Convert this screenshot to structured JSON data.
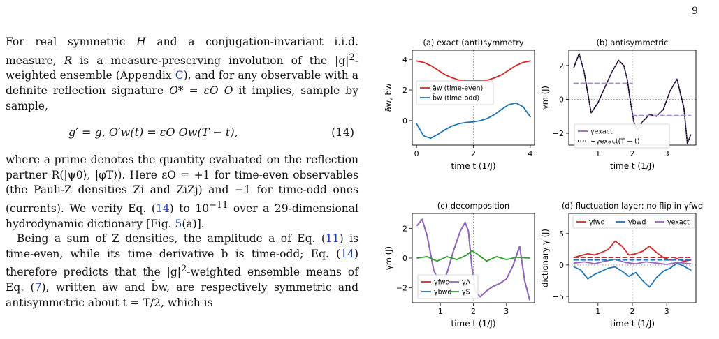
{
  "page_number": "9",
  "text": {
    "p1_a": "For real symmetric ",
    "p1_b": " and a conjugation-invariant i.i.d. measure, ",
    "p1_c": " is a measure-preserving involution of the |g|",
    "p1_d": "-weighted ensemble (Appendix ",
    "p1_appendix": "C",
    "p1_e": "), and for any observable with a definite reflection signature ",
    "p1_f": " it implies, sample by sample,",
    "equation": "g′ = g,        O′w(t) = εO Ow(T − t),",
    "equation_number": "(14)",
    "p2_a": "where a prime denotes the quantity evaluated on the reflection partner R(|ψ0⟩, |φT⟩). Here εO = +1 for time-even observables (the Pauli-Z densities Zi and ZiZj) and −1 for time-odd ones (currents). We verify Eq. (",
    "p2_eqref": "14",
    "p2_b": ") to 10",
    "p2_exp": "−11",
    "p2_c": " over a 29-dimensional hydrodynamic dictionary [Fig. ",
    "p2_figref": "5",
    "p2_d": "(a)].",
    "p3_a": "Being a sum of Z densities, the amplitude a of Eq. (",
    "p3_eqref1": "11",
    "p3_b": ") is time-even, while its time derivative b is time-odd; Eq. (",
    "p3_eqref2": "14",
    "p3_c": ") therefore predicts that the |g|",
    "p3_d": "-weighted ensemble means of Eq. (",
    "p3_eqref3": "7",
    "p3_e": "), written āw and b̄w, are respectively symmetric and antisymmetric about t = T/2, which is",
    "sym_H": "H",
    "sym_R": "R",
    "sym_O": "O* = εO O",
    "sup2": "2"
  },
  "colors": {
    "red": "#d62728",
    "blue": "#1f77b4",
    "purple": "#9467bd",
    "green": "#2ca02c",
    "dashed_purple": "#a98bd6"
  },
  "chart_data": [
    {
      "id": "a",
      "type": "line",
      "title": "(a) exact (anti)symmetry",
      "xlabel": "time t (1/J)",
      "ylabel": "āw, b̄w",
      "xlim": [
        -0.15,
        4.15
      ],
      "ylim": [
        -1.6,
        4.6
      ],
      "xticks": [
        0,
        2,
        4
      ],
      "yticks": [
        0,
        2,
        4
      ],
      "vline": 2,
      "legend": "center-left",
      "series": [
        {
          "name": "āw (time-even)",
          "color": "red",
          "x": [
            0,
            0.25,
            0.5,
            0.75,
            1.0,
            1.25,
            1.5,
            1.75,
            2.0,
            2.25,
            2.5,
            2.75,
            3.0,
            3.25,
            3.5,
            3.75,
            4.0
          ],
          "y": [
            3.9,
            3.8,
            3.6,
            3.3,
            3.0,
            2.8,
            2.65,
            2.6,
            2.6,
            2.6,
            2.65,
            2.8,
            3.0,
            3.3,
            3.6,
            3.8,
            3.9
          ]
        },
        {
          "name": "b̄w (time-odd)",
          "color": "blue",
          "x": [
            0,
            0.25,
            0.5,
            0.75,
            1.0,
            1.25,
            1.5,
            1.75,
            2.0,
            2.25,
            2.5,
            2.75,
            3.0,
            3.25,
            3.5,
            3.75,
            4.0
          ],
          "y": [
            -0.2,
            -1.0,
            -1.15,
            -0.9,
            -0.6,
            -0.35,
            -0.2,
            -0.12,
            -0.08,
            0.0,
            0.15,
            0.4,
            0.75,
            1.05,
            1.15,
            0.9,
            0.25
          ]
        }
      ]
    },
    {
      "id": "b",
      "type": "line",
      "title": "(b) antisymmetric",
      "xlabel": "time t (1/J)",
      "ylabel": "γm (J)",
      "xlim": [
        0.15,
        3.85
      ],
      "ylim": [
        -2.7,
        2.9
      ],
      "xticks": [
        1,
        2,
        3
      ],
      "yticks": [
        -2,
        0,
        2
      ],
      "vline": 2,
      "hline_dotted": 0,
      "legend": "lower-right",
      "series": [
        {
          "name": "γexact",
          "color": "purple",
          "style": "solid",
          "x": [
            0.3,
            0.45,
            0.6,
            0.8,
            1.0,
            1.2,
            1.4,
            1.6,
            1.75,
            1.85,
            1.95,
            2.05,
            2.15,
            2.3,
            2.5,
            2.7,
            2.9,
            3.1,
            3.3,
            3.5,
            3.6,
            3.7
          ],
          "y": [
            1.9,
            2.7,
            1.6,
            -0.8,
            -0.2,
            0.7,
            1.6,
            2.3,
            2.0,
            1.2,
            -0.2,
            -1.4,
            -1.8,
            -1.3,
            -0.9,
            -1.0,
            -0.6,
            0.5,
            1.2,
            -0.5,
            -2.6,
            -2.1
          ]
        },
        {
          "name": "−γexact(T − t)",
          "color": "black",
          "style": "dotted",
          "x": [
            0.3,
            0.45,
            0.6,
            0.8,
            1.0,
            1.2,
            1.4,
            1.6,
            1.75,
            1.85,
            1.95,
            2.05,
            2.15,
            2.3,
            2.5,
            2.7,
            2.9,
            3.1,
            3.3,
            3.5,
            3.6,
            3.7
          ],
          "y": [
            1.9,
            2.7,
            1.6,
            -0.8,
            -0.2,
            0.7,
            1.6,
            2.3,
            2.0,
            1.2,
            -0.2,
            -1.4,
            -1.8,
            -1.3,
            -0.9,
            -1.0,
            -0.6,
            0.5,
            1.2,
            -0.5,
            -2.6,
            -2.1
          ]
        },
        {
          "name": "",
          "color": "dashed_purple",
          "style": "dashed",
          "x": [
            0.3,
            2.0
          ],
          "y": [
            0.95,
            0.95
          ]
        },
        {
          "name": "",
          "color": "dashed_purple",
          "style": "dashed",
          "x": [
            2.0,
            3.7
          ],
          "y": [
            -0.95,
            -0.95
          ]
        }
      ]
    },
    {
      "id": "c",
      "type": "line",
      "title": "(c) decomposition",
      "xlabel": "time t (1/J)",
      "ylabel": "γm (J)",
      "xlim": [
        0.15,
        3.85
      ],
      "ylim": [
        -3.0,
        3.0
      ],
      "xticks": [
        1,
        2,
        3
      ],
      "yticks": [
        -2,
        0,
        2
      ],
      "vline": 2,
      "legend": "lower-left",
      "series": [
        {
          "name": "γfwd",
          "color": "red",
          "x": [
            0.3,
            0.45,
            0.6,
            0.8,
            1.0,
            1.2,
            1.4,
            1.6,
            1.75,
            1.85,
            1.95,
            2.05,
            2.2,
            2.4,
            2.6,
            2.8,
            3.0,
            3.2,
            3.4,
            3.55,
            3.7
          ],
          "y": [
            2.2,
            2.6,
            1.5,
            -0.8,
            -1.8,
            -1.0,
            0.5,
            1.8,
            2.4,
            1.8,
            -0.5,
            -2.2,
            -2.6,
            -2.2,
            -1.9,
            -1.7,
            -1.4,
            -0.5,
            0.8,
            -1.5,
            -2.8
          ]
        },
        {
          "name": "γbwd",
          "color": "blue",
          "x": [
            0.3,
            0.45,
            0.6,
            0.8,
            1.0,
            1.2,
            1.4,
            1.6,
            1.75,
            1.85,
            1.95,
            2.05,
            2.2,
            2.4,
            2.6,
            2.8,
            3.0,
            3.2,
            3.4,
            3.55,
            3.7
          ],
          "y": [
            2.2,
            2.6,
            1.5,
            -0.8,
            -1.8,
            -1.0,
            0.5,
            1.8,
            2.4,
            1.8,
            -0.5,
            -2.2,
            -2.6,
            -2.2,
            -1.9,
            -1.7,
            -1.4,
            -0.5,
            0.8,
            -1.5,
            -2.8
          ]
        },
        {
          "name": "γA",
          "color": "purple",
          "x": [
            0.3,
            0.45,
            0.6,
            0.8,
            1.0,
            1.2,
            1.4,
            1.6,
            1.75,
            1.85,
            1.95,
            2.05,
            2.2,
            2.4,
            2.6,
            2.8,
            3.0,
            3.2,
            3.4,
            3.55,
            3.7
          ],
          "y": [
            2.2,
            2.6,
            1.5,
            -0.8,
            -1.8,
            -1.0,
            0.5,
            1.8,
            2.4,
            1.8,
            -0.5,
            -2.2,
            -2.6,
            -2.2,
            -1.9,
            -1.7,
            -1.4,
            -0.5,
            0.8,
            -1.5,
            -2.8
          ]
        },
        {
          "name": "γS",
          "color": "green",
          "x": [
            0.3,
            0.6,
            0.9,
            1.2,
            1.5,
            1.8,
            1.95,
            2.1,
            2.4,
            2.7,
            3.0,
            3.3,
            3.7
          ],
          "y": [
            0.0,
            0.1,
            -0.2,
            0.1,
            -0.1,
            0.2,
            0.5,
            0.3,
            -0.2,
            0.1,
            -0.1,
            0.05,
            0.0
          ]
        }
      ]
    },
    {
      "id": "d",
      "type": "line",
      "title": "(d) fluctuation layer: no flip in γfwd",
      "xlabel": "time t (1/J)",
      "ylabel": "dictionary γ (J)",
      "xlim": [
        0.15,
        3.85
      ],
      "ylim": [
        -6,
        8.2
      ],
      "xticks": [
        1,
        2,
        3
      ],
      "yticks": [
        -5,
        0,
        5
      ],
      "vline": 2,
      "hline_dotted": 0,
      "legend": "top",
      "series": [
        {
          "name": "γfwd",
          "color": "red",
          "x": [
            0.3,
            0.5,
            0.7,
            0.9,
            1.1,
            1.3,
            1.5,
            1.7,
            1.9,
            2.1,
            2.3,
            2.5,
            2.7,
            2.9,
            3.1,
            3.3,
            3.5,
            3.7
          ],
          "y": [
            1.2,
            1.5,
            1.8,
            1.6,
            2.0,
            2.5,
            3.8,
            3.0,
            1.6,
            1.8,
            2.2,
            3.0,
            2.0,
            1.2,
            0.8,
            1.0,
            0.6,
            0.8
          ]
        },
        {
          "name": "γbwd",
          "color": "blue",
          "x": [
            0.3,
            0.5,
            0.7,
            0.9,
            1.1,
            1.3,
            1.5,
            1.7,
            1.9,
            2.1,
            2.3,
            2.5,
            2.7,
            2.9,
            3.1,
            3.3,
            3.5,
            3.7
          ],
          "y": [
            -0.3,
            -0.8,
            -2.2,
            -1.5,
            -1.0,
            -0.5,
            -0.3,
            -1.0,
            -1.8,
            -1.2,
            -2.5,
            -3.5,
            -2.0,
            -1.0,
            -0.5,
            0.3,
            -0.2,
            -0.8
          ]
        },
        {
          "name": "γexact",
          "color": "purple",
          "x": [
            0.3,
            0.6,
            0.9,
            1.2,
            1.5,
            1.8,
            2.1,
            2.4,
            2.7,
            3.0,
            3.3,
            3.7
          ],
          "y": [
            0.3,
            0.5,
            0.2,
            0.6,
            0.9,
            0.4,
            0.2,
            0.5,
            0.3,
            0.1,
            0.4,
            0.2
          ]
        },
        {
          "name": "",
          "color": "red",
          "style": "dashed",
          "x": [
            0.3,
            3.7
          ],
          "y": [
            1.2,
            1.2
          ]
        },
        {
          "name": "",
          "color": "blue",
          "style": "dashed",
          "x": [
            0.3,
            3.7
          ],
          "y": [
            0.8,
            0.8
          ]
        }
      ]
    }
  ]
}
